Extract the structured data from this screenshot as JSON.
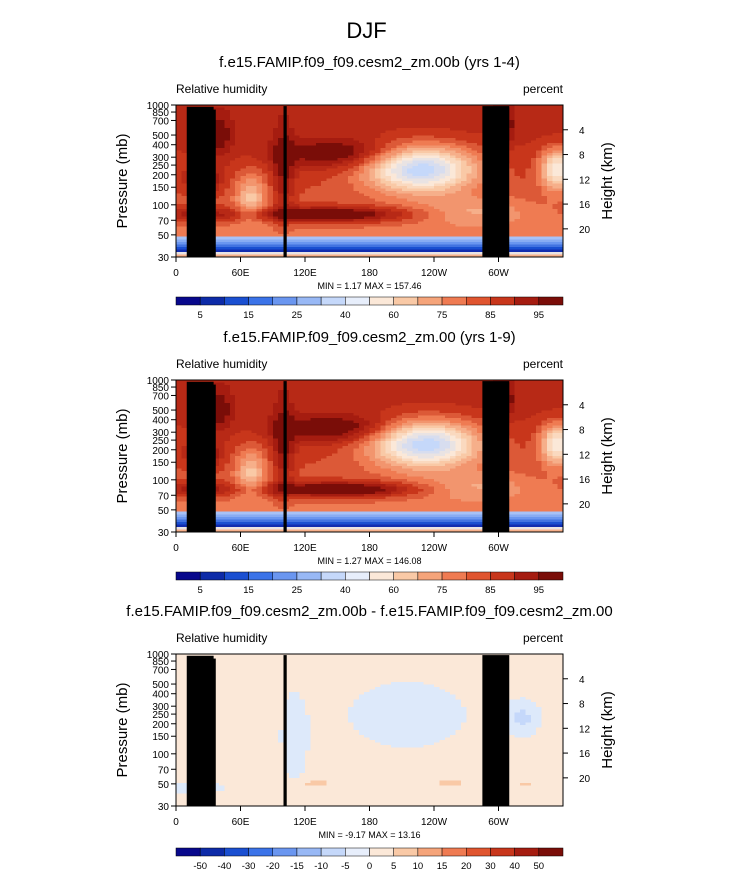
{
  "figure": {
    "title": "DJF"
  },
  "panels": [
    {
      "title": "f.e15.FAMIP.f09_f09.cesm2_zm.00b (yrs 1-4)",
      "left_label": "Relative humidity",
      "right_label": "percent",
      "stats": "MIN =   1.17  MAX = 157.46"
    },
    {
      "title": "f.e15.FAMIP.f09_f09.cesm2_zm.00 (yrs 1-9)",
      "left_label": "Relative humidity",
      "right_label": "percent",
      "stats": "MIN =   1.27  MAX = 146.08"
    },
    {
      "title": "f.e15.FAMIP.f09_f09.cesm2_zm.00b - f.e15.FAMIP.f09_f09.cesm2_zm.00",
      "left_label": "Relative humidity",
      "right_label": "percent",
      "stats": "MIN =  -9.17  MAX = 13.16"
    }
  ],
  "axes": {
    "ylabel_left": "Pressure (mb)",
    "ylabel_right": "Height (km)",
    "pressure_ticks": [
      "1000",
      "850",
      "700",
      "500",
      "400",
      "300",
      "250",
      "200",
      "150",
      "100",
      "70",
      "50",
      "30"
    ],
    "pressure_values": [
      1000,
      850,
      700,
      500,
      400,
      300,
      250,
      200,
      150,
      100,
      70,
      50,
      30
    ],
    "height_ticks": [
      "4",
      "8",
      "12",
      "16",
      "20"
    ],
    "height_values": [
      4,
      8,
      12,
      16,
      20
    ],
    "lon_ticks": [
      "0",
      "60E",
      "120E",
      "180",
      "120W",
      "60W"
    ],
    "lon_values": [
      0,
      60,
      120,
      180,
      240,
      300
    ],
    "lon_range": [
      0,
      360
    ],
    "pressure_range": [
      1000,
      30
    ]
  },
  "colorbars": {
    "full": {
      "labels": [
        "5",
        "15",
        "25",
        "40",
        "60",
        "75",
        "85",
        "95"
      ],
      "colors": [
        "#08088c",
        "#0d2ba8",
        "#1a4fd1",
        "#3b73e8",
        "#6a96f0",
        "#98b8f5",
        "#c5d8fa",
        "#e7eefb",
        "#fbe8d8",
        "#f9c9a6",
        "#f5a47a",
        "#ef7b52",
        "#e0552f",
        "#c8361b",
        "#a51c10",
        "#7a0d08"
      ]
    },
    "diff": {
      "labels": [
        "-50",
        "-40",
        "-30",
        "-20",
        "-15",
        "-10",
        "-5",
        "0",
        "5",
        "10",
        "15",
        "20",
        "30",
        "40",
        "50"
      ],
      "colors": [
        "#08088c",
        "#0d2ba8",
        "#1a4fd1",
        "#3b73e8",
        "#6a96f0",
        "#98b8f5",
        "#c5d8fa",
        "#e7eefb",
        "#fbe8d8",
        "#f9c9a6",
        "#f5a47a",
        "#ef7b52",
        "#e0552f",
        "#c8361b",
        "#a51c10",
        "#7a0d08"
      ]
    }
  },
  "chart_data": [
    {
      "type": "heatmap",
      "title": "f.e15.FAMIP.f09_f09.cesm2_zm.00b (yrs 1-4)",
      "xlabel": "",
      "ylabel": "Pressure (mb)",
      "xlim": [
        0,
        360
      ],
      "ylim": [
        1000,
        30
      ],
      "y_scale": "log",
      "levels": [
        5,
        10,
        15,
        20,
        25,
        30,
        40,
        50,
        60,
        65,
        75,
        80,
        85,
        90,
        95
      ],
      "min": 1.17,
      "max": 157.46,
      "features": [
        {
          "lon": 25,
          "p": 200,
          "rh": 85
        },
        {
          "lon": 130,
          "p": 120,
          "rh": 100
        },
        {
          "lon": 230,
          "p": 400,
          "rh": 10
        },
        {
          "lon": 350,
          "p": 400,
          "rh": 20
        },
        {
          "lon": 40,
          "p": 600,
          "rh": 80
        },
        {
          "lon": 150,
          "p": 500,
          "rh": 80
        },
        {
          "lon": 220,
          "p": 950,
          "rh": 90
        }
      ]
    },
    {
      "type": "heatmap",
      "title": "f.e15.FAMIP.f09_f09.cesm2_zm.00 (yrs 1-9)",
      "xlabel": "",
      "ylabel": "Pressure (mb)",
      "xlim": [
        0,
        360
      ],
      "ylim": [
        1000,
        30
      ],
      "y_scale": "log",
      "levels": [
        5,
        10,
        15,
        20,
        25,
        30,
        40,
        50,
        60,
        65,
        75,
        80,
        85,
        90,
        95
      ],
      "min": 1.27,
      "max": 146.08,
      "features": [
        {
          "lon": 25,
          "p": 200,
          "rh": 85
        },
        {
          "lon": 150,
          "p": 120,
          "rh": 100
        },
        {
          "lon": 235,
          "p": 400,
          "rh": 15
        },
        {
          "lon": 350,
          "p": 400,
          "rh": 20
        },
        {
          "lon": 150,
          "p": 500,
          "rh": 80
        },
        {
          "lon": 220,
          "p": 950,
          "rh": 90
        }
      ]
    },
    {
      "type": "heatmap",
      "title": "f.e15.FAMIP.f09_f09.cesm2_zm.00b - f.e15.FAMIP.f09_f09.cesm2_zm.00",
      "xlabel": "",
      "ylabel": "Pressure (mb)",
      "xlim": [
        0,
        360
      ],
      "ylim": [
        1000,
        30
      ],
      "y_scale": "log",
      "levels": [
        -50,
        -40,
        -30,
        -20,
        -15,
        -10,
        -5,
        0,
        5,
        10,
        15,
        20,
        30,
        40,
        50
      ],
      "min": -9.17,
      "max": 13.16,
      "features": [
        {
          "lon": 25,
          "p": 400,
          "rh": 6
        },
        {
          "lon": 130,
          "p": 120,
          "rh": 8
        },
        {
          "lon": 260,
          "p": 120,
          "rh": 8
        },
        {
          "lon": 320,
          "p": 120,
          "rh": 6
        },
        {
          "lon": 215,
          "p": 450,
          "rh": -4
        },
        {
          "lon": 320,
          "p": 450,
          "rh": -6
        }
      ]
    }
  ]
}
